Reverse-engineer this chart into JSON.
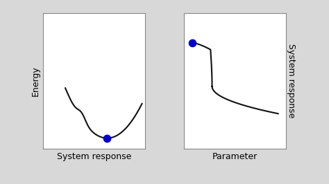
{
  "fig_width": 4.74,
  "fig_height": 2.66,
  "dpi": 100,
  "bg_color": "#d8d8d8",
  "panel_bg": "#ffffff",
  "line_color": "#111111",
  "line_width": 1.5,
  "dot_color": "#0000cc",
  "dot_size": 55,
  "left_xlabel": "System response",
  "left_ylabel": "Energy",
  "right_xlabel": "Parameter",
  "right_ylabel": "System response",
  "xlabel_fontsize": 9,
  "ylabel_fontsize": 9,
  "spine_color": "#888888",
  "spine_lw": 0.8
}
